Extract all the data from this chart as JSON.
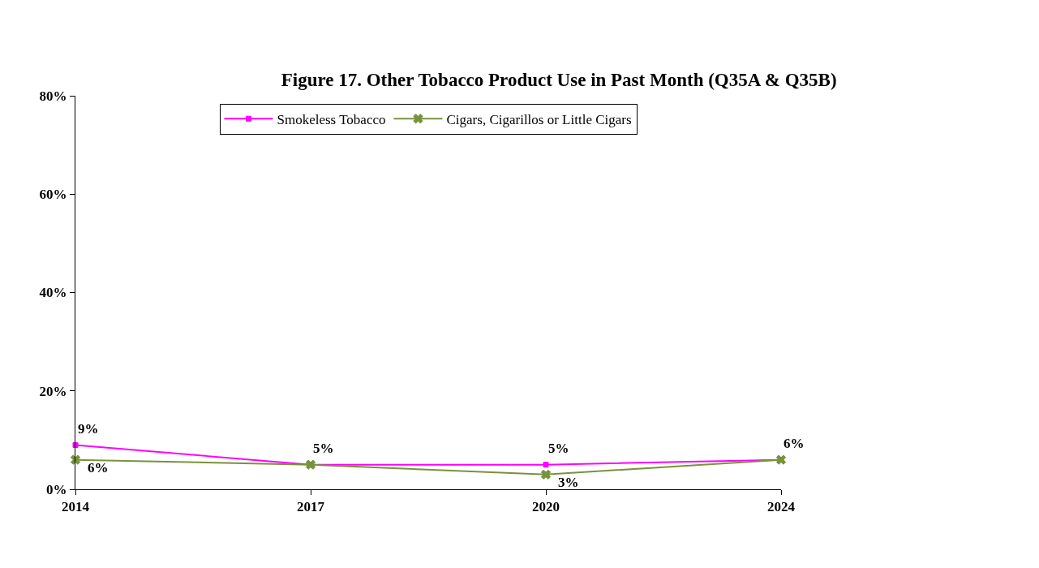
{
  "chart_data": {
    "type": "line",
    "title": "Figure 17. Other Tobacco Product Use in Past Month (Q35A & Q35B)",
    "categories": [
      "2014",
      "2017",
      "2020",
      "2024"
    ],
    "series": [
      {
        "name": "Smokeless Tobacco",
        "color": "#ff00ff",
        "marker": "square",
        "values": [
          9,
          5,
          5,
          6
        ],
        "value_labels": [
          "9%",
          "5%",
          "5%",
          "6%"
        ]
      },
      {
        "name": "Cigars, Cigarillos or Little Cigars",
        "color": "#77933c",
        "marker": "cross",
        "values": [
          6,
          5,
          3,
          6
        ],
        "value_labels": [
          "6%",
          null,
          "3%",
          null
        ]
      }
    ],
    "ylim": [
      0,
      80
    ],
    "yticks": [
      {
        "value": 0,
        "label": "0%"
      },
      {
        "value": 20,
        "label": "20%"
      },
      {
        "value": 40,
        "label": "40%"
      },
      {
        "value": 60,
        "label": "60%"
      },
      {
        "value": 80,
        "label": "80%"
      }
    ],
    "grid": false,
    "legend": "top",
    "line_style": "solid"
  }
}
